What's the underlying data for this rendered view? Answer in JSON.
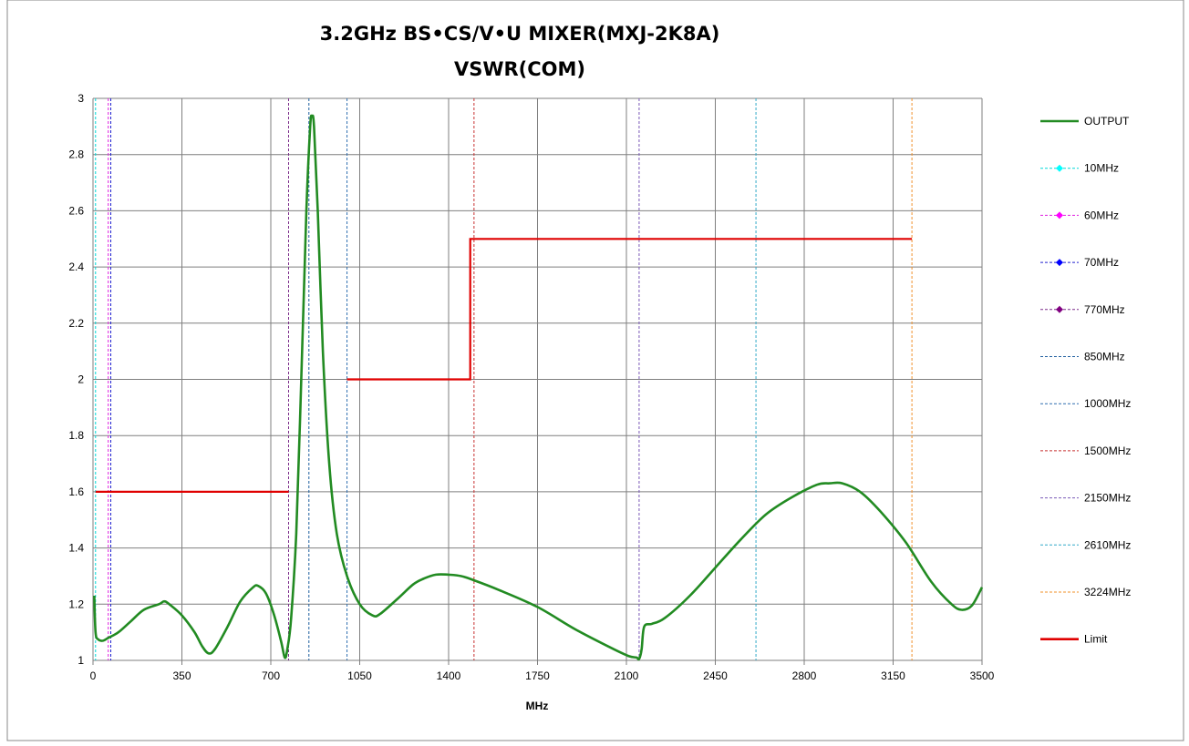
{
  "chart_data": {
    "type": "line",
    "title": "3.2GHz BS•CS/V•U MIXER(MXJ-2K8A)",
    "subtitle": "VSWR(COM)",
    "xlabel": "MHz",
    "ylabel": "",
    "xlim": [
      0,
      3500
    ],
    "ylim": [
      1,
      3
    ],
    "x_ticks": [
      "0",
      "350",
      "700",
      "1050",
      "1400",
      "1750",
      "2100",
      "2450",
      "2800",
      "3150",
      "3500"
    ],
    "y_ticks": [
      "1",
      "1.2",
      "1.4",
      "1.6",
      "1.8",
      "2",
      "2.2",
      "2.4",
      "2.6",
      "2.8",
      "3"
    ],
    "grid": true,
    "legend_position": "right",
    "series": [
      {
        "name": "OUTPUT",
        "kind": "curve",
        "color": "#228B22",
        "points": [
          [
            5,
            1.23
          ],
          [
            10,
            1.1
          ],
          [
            20,
            1.075
          ],
          [
            40,
            1.07
          ],
          [
            60,
            1.08
          ],
          [
            100,
            1.1
          ],
          [
            150,
            1.14
          ],
          [
            200,
            1.18
          ],
          [
            260,
            1.2
          ],
          [
            280,
            1.21
          ],
          [
            300,
            1.2
          ],
          [
            350,
            1.16
          ],
          [
            400,
            1.1
          ],
          [
            430,
            1.05
          ],
          [
            455,
            1.025
          ],
          [
            480,
            1.04
          ],
          [
            530,
            1.12
          ],
          [
            580,
            1.21
          ],
          [
            630,
            1.26
          ],
          [
            650,
            1.265
          ],
          [
            680,
            1.24
          ],
          [
            710,
            1.17
          ],
          [
            740,
            1.07
          ],
          [
            755,
            1.01
          ],
          [
            765,
            1.04
          ],
          [
            780,
            1.15
          ],
          [
            800,
            1.45
          ],
          [
            820,
            2.0
          ],
          [
            840,
            2.6
          ],
          [
            855,
            2.9
          ],
          [
            862,
            2.935
          ],
          [
            870,
            2.9
          ],
          [
            885,
            2.6
          ],
          [
            905,
            2.1
          ],
          [
            930,
            1.7
          ],
          [
            960,
            1.45
          ],
          [
            1000,
            1.3
          ],
          [
            1050,
            1.2
          ],
          [
            1100,
            1.16
          ],
          [
            1130,
            1.165
          ],
          [
            1200,
            1.22
          ],
          [
            1260,
            1.27
          ],
          [
            1300,
            1.29
          ],
          [
            1350,
            1.305
          ],
          [
            1400,
            1.305
          ],
          [
            1450,
            1.3
          ],
          [
            1500,
            1.285
          ],
          [
            1600,
            1.25
          ],
          [
            1750,
            1.19
          ],
          [
            1900,
            1.11
          ],
          [
            2050,
            1.04
          ],
          [
            2110,
            1.015
          ],
          [
            2140,
            1.01
          ],
          [
            2150,
            1.005
          ],
          [
            2160,
            1.04
          ],
          [
            2170,
            1.12
          ],
          [
            2200,
            1.13
          ],
          [
            2250,
            1.15
          ],
          [
            2350,
            1.23
          ],
          [
            2450,
            1.33
          ],
          [
            2550,
            1.43
          ],
          [
            2650,
            1.52
          ],
          [
            2750,
            1.58
          ],
          [
            2850,
            1.625
          ],
          [
            2900,
            1.63
          ],
          [
            2950,
            1.63
          ],
          [
            3020,
            1.6
          ],
          [
            3100,
            1.53
          ],
          [
            3200,
            1.42
          ],
          [
            3300,
            1.28
          ],
          [
            3380,
            1.2
          ],
          [
            3420,
            1.18
          ],
          [
            3460,
            1.195
          ],
          [
            3500,
            1.26
          ]
        ]
      },
      {
        "name": "10MHz",
        "kind": "vline",
        "x": 10,
        "color": "#00D8D8",
        "marker": "diamond",
        "marker_color": "#00FFFF"
      },
      {
        "name": "60MHz",
        "kind": "vline",
        "x": 60,
        "color": "#E020E0",
        "marker": "diamond",
        "marker_color": "#FF00FF"
      },
      {
        "name": "70MHz",
        "kind": "vline",
        "x": 70,
        "color": "#2020D0",
        "marker": "diamond",
        "marker_color": "#0000FF"
      },
      {
        "name": "770MHz",
        "kind": "vline",
        "x": 770,
        "color": "#7B2C8A",
        "marker": "diamond",
        "marker_color": "#800080"
      },
      {
        "name": "850MHz",
        "kind": "vline",
        "x": 850,
        "color": "#1F5F9F",
        "marker": "none"
      },
      {
        "name": "1000MHz",
        "kind": "vline",
        "x": 1000,
        "color": "#2F6FB0",
        "marker": "none"
      },
      {
        "name": "1500MHz",
        "kind": "vline",
        "x": 1500,
        "color": "#C83030",
        "marker": "none"
      },
      {
        "name": "2150MHz",
        "kind": "vline",
        "x": 2150,
        "color": "#7A5AB8",
        "marker": "none"
      },
      {
        "name": "2610MHz",
        "kind": "vline",
        "x": 2610,
        "color": "#30A8C8",
        "marker": "none"
      },
      {
        "name": "3224MHz",
        "kind": "vline",
        "x": 3224,
        "color": "#F0902A",
        "marker": "none"
      },
      {
        "name": "Limit",
        "kind": "segments",
        "color": "#E00000",
        "segments": [
          [
            [
              10,
              1.6
            ],
            [
              770,
              1.6
            ]
          ],
          [
            [
              1000,
              2.0
            ],
            [
              1485,
              2.0
            ],
            [
              1485,
              2.5
            ],
            [
              3224,
              2.5
            ]
          ]
        ]
      }
    ]
  }
}
